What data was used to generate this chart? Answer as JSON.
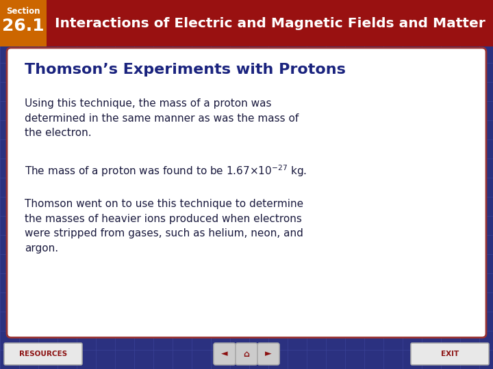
{
  "title_section": "Section",
  "title_number": "26.1",
  "title_main": "Interactions of Electric and Magnetic Fields and Matter",
  "slide_title": "Thomson’s Experiments with Protons",
  "para1": "Using this technique, the mass of a proton was\ndetermined in the same manner as was the mass of\nthe electron.",
  "para2_pre": "The mass of a proton was found to be 1.67×10",
  "para2_exp": "−27",
  "para2_post": " kg.",
  "para3": "Thomson went on to use this technique to determine\nthe masses of heavier ions produced when electrons\nwere stripped from gases, such as helium, neon, and\nargon.",
  "bg_color": "#2B3180",
  "header_bg": "#991111",
  "header_orange": "#CC6600",
  "header_text_color": "#FFFFFF",
  "header_num_color": "#FFFFFF",
  "card_bg": "#FFFFFF",
  "card_border_color": "#993333",
  "slide_title_color": "#1a237e",
  "body_text_color": "#1a1a3e",
  "footer_bg": "#2B3180",
  "resources_btn_bg": "#e8e8e8",
  "resources_text_color": "#8B1010",
  "exit_btn_bg": "#e8e8e8",
  "exit_text_color": "#8B1010",
  "nav_btn_bg": "#cccccc",
  "nav_arrow_color": "#8B1010",
  "grid_line_color": "#3a4298"
}
